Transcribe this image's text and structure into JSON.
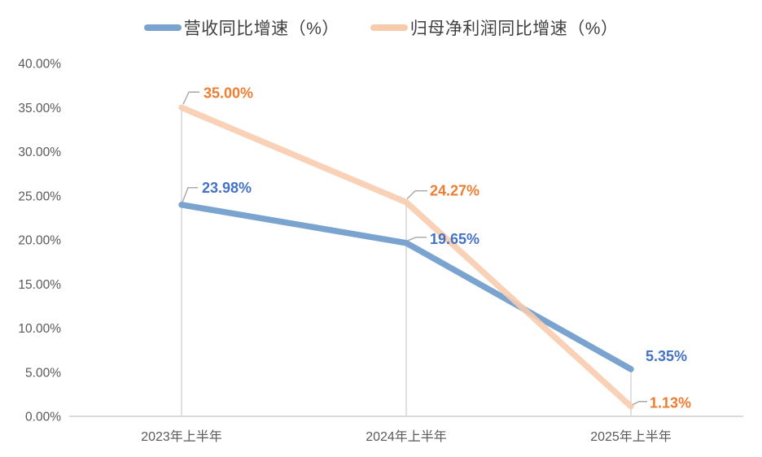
{
  "chart_data": {
    "type": "line",
    "title": "",
    "categories": [
      "2023年上半年",
      "2024年上半年",
      "2025年上半年"
    ],
    "series": [
      {
        "name": "营收同比增速（%）",
        "values": [
          23.98,
          19.65,
          5.35
        ],
        "data_labels": [
          "23.98%",
          "19.65%",
          "5.35%"
        ],
        "line_color": "#7AA4CF",
        "label_color": "#4472C4"
      },
      {
        "name": "归母净利润同比增速（%）",
        "values": [
          35.0,
          24.27,
          1.13
        ],
        "data_labels": [
          "35.00%",
          "24.27%",
          "1.13%"
        ],
        "line_color": "#F8CBAD",
        "label_color": "#ED7D31"
      }
    ],
    "ylim": [
      0,
      40
    ],
    "ytick_step": 5,
    "ytick_labels": [
      "0.00%",
      "5.00%",
      "10.00%",
      "15.00%",
      "20.00%",
      "25.00%",
      "30.00%",
      "35.00%",
      "40.00%"
    ],
    "legend_position": "top",
    "grid": "vertical-drop-lines-only",
    "axis_color": "#D9D9D9",
    "drop_line_color": "#D9D9D9",
    "leader_line_color": "#A6A6A6",
    "tick_text_color": "#595959",
    "legend_text_color": "#3f3f3f"
  }
}
